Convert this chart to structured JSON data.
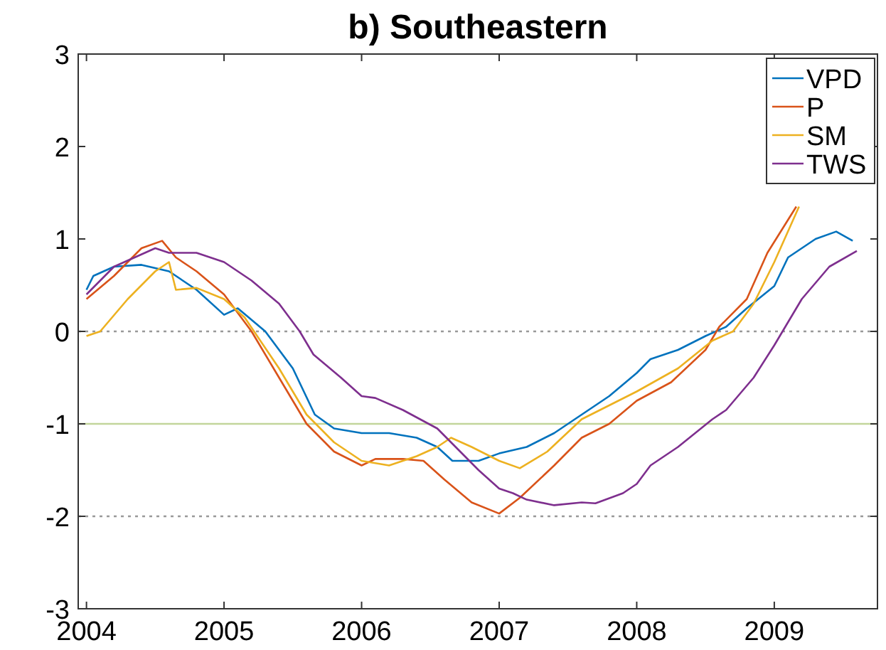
{
  "chart_data": {
    "type": "line",
    "title": "b) Southeastern",
    "xlim": [
      2003.94,
      2009.75
    ],
    "xticks": [
      2004,
      2005,
      2006,
      2007,
      2008,
      2009
    ],
    "ylim": [
      -3,
      3
    ],
    "yticks": [
      -3,
      -2,
      -1,
      0,
      1,
      2,
      3
    ],
    "grid": false,
    "legend": "top right",
    "line_style": "solid",
    "ref_lines": [
      {
        "axis": "y",
        "value": 0,
        "color": "#999999",
        "line_style": "dotted"
      },
      {
        "axis": "y",
        "value": -1,
        "color": "#c3d69b",
        "line_style": "solid"
      },
      {
        "axis": "y",
        "value": -2,
        "color": "#999999",
        "line_style": "dotted"
      }
    ],
    "series": [
      {
        "name": "VPD",
        "color": "#0072bd",
        "x": [
          2004,
          2004.05,
          2004.2,
          2004.4,
          2004.6,
          2004.8,
          2005,
          2005.1,
          2005.3,
          2005.5,
          2005.66,
          2005.8,
          2006,
          2006.2,
          2006.4,
          2006.55,
          2006.66,
          2006.85,
          2007,
          2007.2,
          2007.4,
          2007.6,
          2007.8,
          2008,
          2008.1,
          2008.3,
          2008.5,
          2008.65,
          2008.8,
          2009,
          2009.1,
          2009.3,
          2009.45,
          2009.57
        ],
        "values": [
          0.45,
          0.6,
          0.7,
          0.72,
          0.65,
          0.45,
          0.18,
          0.25,
          0,
          -0.4,
          -0.9,
          -1.05,
          -1.1,
          -1.1,
          -1.15,
          -1.25,
          -1.4,
          -1.4,
          -1.32,
          -1.25,
          -1.1,
          -0.9,
          -0.7,
          -0.45,
          -0.3,
          -0.2,
          -0.05,
          0.05,
          0.25,
          0.49,
          0.8,
          1,
          1.08,
          0.98
        ]
      },
      {
        "name": "P",
        "color": "#d95319",
        "x": [
          2004,
          2004.2,
          2004.4,
          2004.55,
          2004.65,
          2004.8,
          2005,
          2005.2,
          2005.4,
          2005.6,
          2005.8,
          2006,
          2006.1,
          2006.3,
          2006.45,
          2006.6,
          2006.8,
          2007,
          2007.15,
          2007.4,
          2007.6,
          2007.8,
          2008,
          2008.25,
          2008.5,
          2008.6,
          2008.8,
          2008.95,
          2009.16
        ],
        "values": [
          0.35,
          0.6,
          0.9,
          0.98,
          0.8,
          0.65,
          0.4,
          0,
          -0.5,
          -1,
          -1.3,
          -1.45,
          -1.38,
          -1.38,
          -1.4,
          -1.6,
          -1.85,
          -1.97,
          -1.8,
          -1.45,
          -1.15,
          -1,
          -0.75,
          -0.55,
          -0.2,
          0.05,
          0.35,
          0.85,
          1.35
        ]
      },
      {
        "name": "SM",
        "color": "#edb120",
        "x": [
          2004,
          2004.1,
          2004.3,
          2004.5,
          2004.6,
          2004.65,
          2004.8,
          2005,
          2005.15,
          2005.4,
          2005.6,
          2005.8,
          2006,
          2006.2,
          2006.4,
          2006.55,
          2006.65,
          2006.8,
          2007,
          2007.15,
          2007.35,
          2007.6,
          2007.8,
          2008,
          2008.3,
          2008.55,
          2008.7,
          2008.85,
          2009,
          2009.18
        ],
        "values": [
          -0.05,
          0,
          0.35,
          0.65,
          0.75,
          0.45,
          0.47,
          0.35,
          0.15,
          -0.4,
          -0.9,
          -1.2,
          -1.4,
          -1.45,
          -1.35,
          -1.25,
          -1.15,
          -1.25,
          -1.4,
          -1.48,
          -1.3,
          -0.95,
          -0.8,
          -0.65,
          -0.4,
          -0.1,
          0,
          0.3,
          0.75,
          1.35
        ]
      },
      {
        "name": "TWS",
        "color": "#7e2f8e",
        "x": [
          2004,
          2004.2,
          2004.5,
          2004.6,
          2004.8,
          2005,
          2005.2,
          2005.4,
          2005.55,
          2005.65,
          2005.85,
          2006,
          2006.1,
          2006.3,
          2006.55,
          2006.65,
          2006.85,
          2007,
          2007.1,
          2007.2,
          2007.4,
          2007.6,
          2007.7,
          2007.9,
          2008,
          2008.1,
          2008.3,
          2008.55,
          2008.65,
          2008.85,
          2009,
          2009.2,
          2009.4,
          2009.6
        ],
        "values": [
          0.4,
          0.7,
          0.9,
          0.85,
          0.85,
          0.75,
          0.55,
          0.3,
          0,
          -0.25,
          -0.5,
          -0.7,
          -0.72,
          -0.85,
          -1.05,
          -1.2,
          -1.5,
          -1.7,
          -1.75,
          -1.82,
          -1.88,
          -1.85,
          -1.86,
          -1.75,
          -1.65,
          -1.45,
          -1.25,
          -0.95,
          -0.85,
          -0.5,
          -0.15,
          0.35,
          0.7,
          0.87
        ]
      }
    ]
  }
}
